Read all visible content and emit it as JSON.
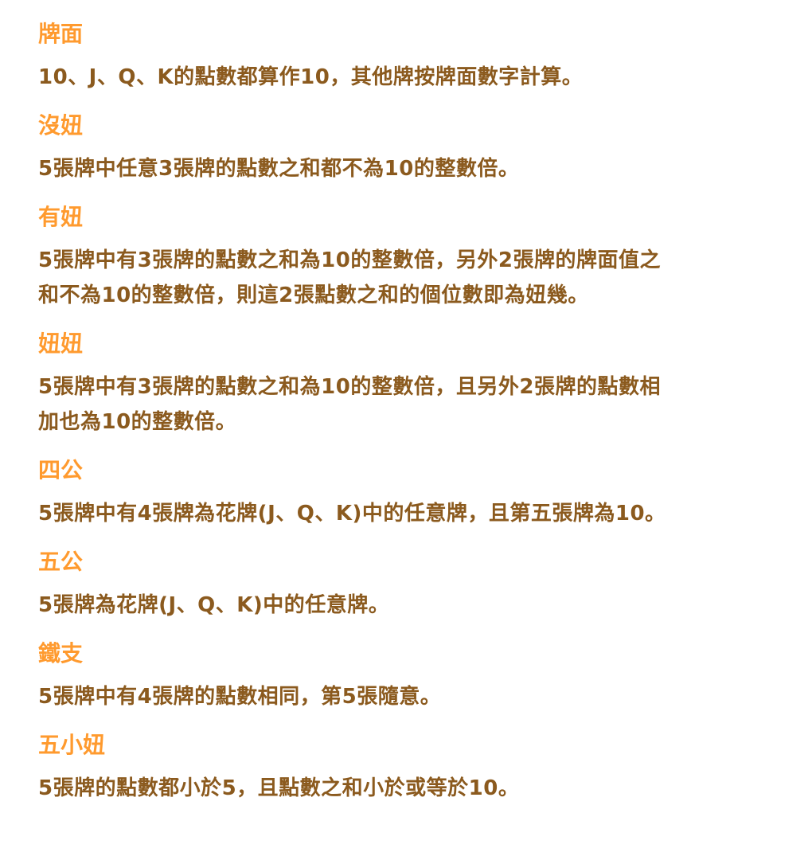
{
  "colors": {
    "heading": "#ff9a2e",
    "body": "#8b5a1e"
  },
  "sections": [
    {
      "title": "牌面",
      "lines": [
        "10、J、Q、K的點數都算作10，其他牌按牌面數字計算。"
      ]
    },
    {
      "title": "沒妞",
      "lines": [
        "5張牌中任意3張牌的點數之和都不為10的整數倍。"
      ]
    },
    {
      "title": "有妞",
      "lines": [
        "5張牌中有3張牌的點數之和為10的整數倍，另外2張牌的牌面值之",
        "和不為10的整數倍，則這2張點數之和的個位數即為妞幾。"
      ]
    },
    {
      "title": "妞妞",
      "lines": [
        "5張牌中有3張牌的點數之和為10的整數倍，且另外2張牌的點數相",
        "加也為10的整數倍。"
      ]
    },
    {
      "title": "四公",
      "lines": [
        "5張牌中有4張牌為花牌(J、Q、K)中的任意牌，且第五張牌為10。"
      ]
    },
    {
      "title": "五公",
      "lines": [
        "5張牌為花牌(J、Q、K)中的任意牌。"
      ]
    },
    {
      "title": "鐵支",
      "lines": [
        "5張牌中有4張牌的點數相同，第5張隨意。"
      ]
    },
    {
      "title": "五小妞",
      "lines": [
        "5張牌的點數都小於5，且點數之和小於或等於10。"
      ]
    }
  ]
}
